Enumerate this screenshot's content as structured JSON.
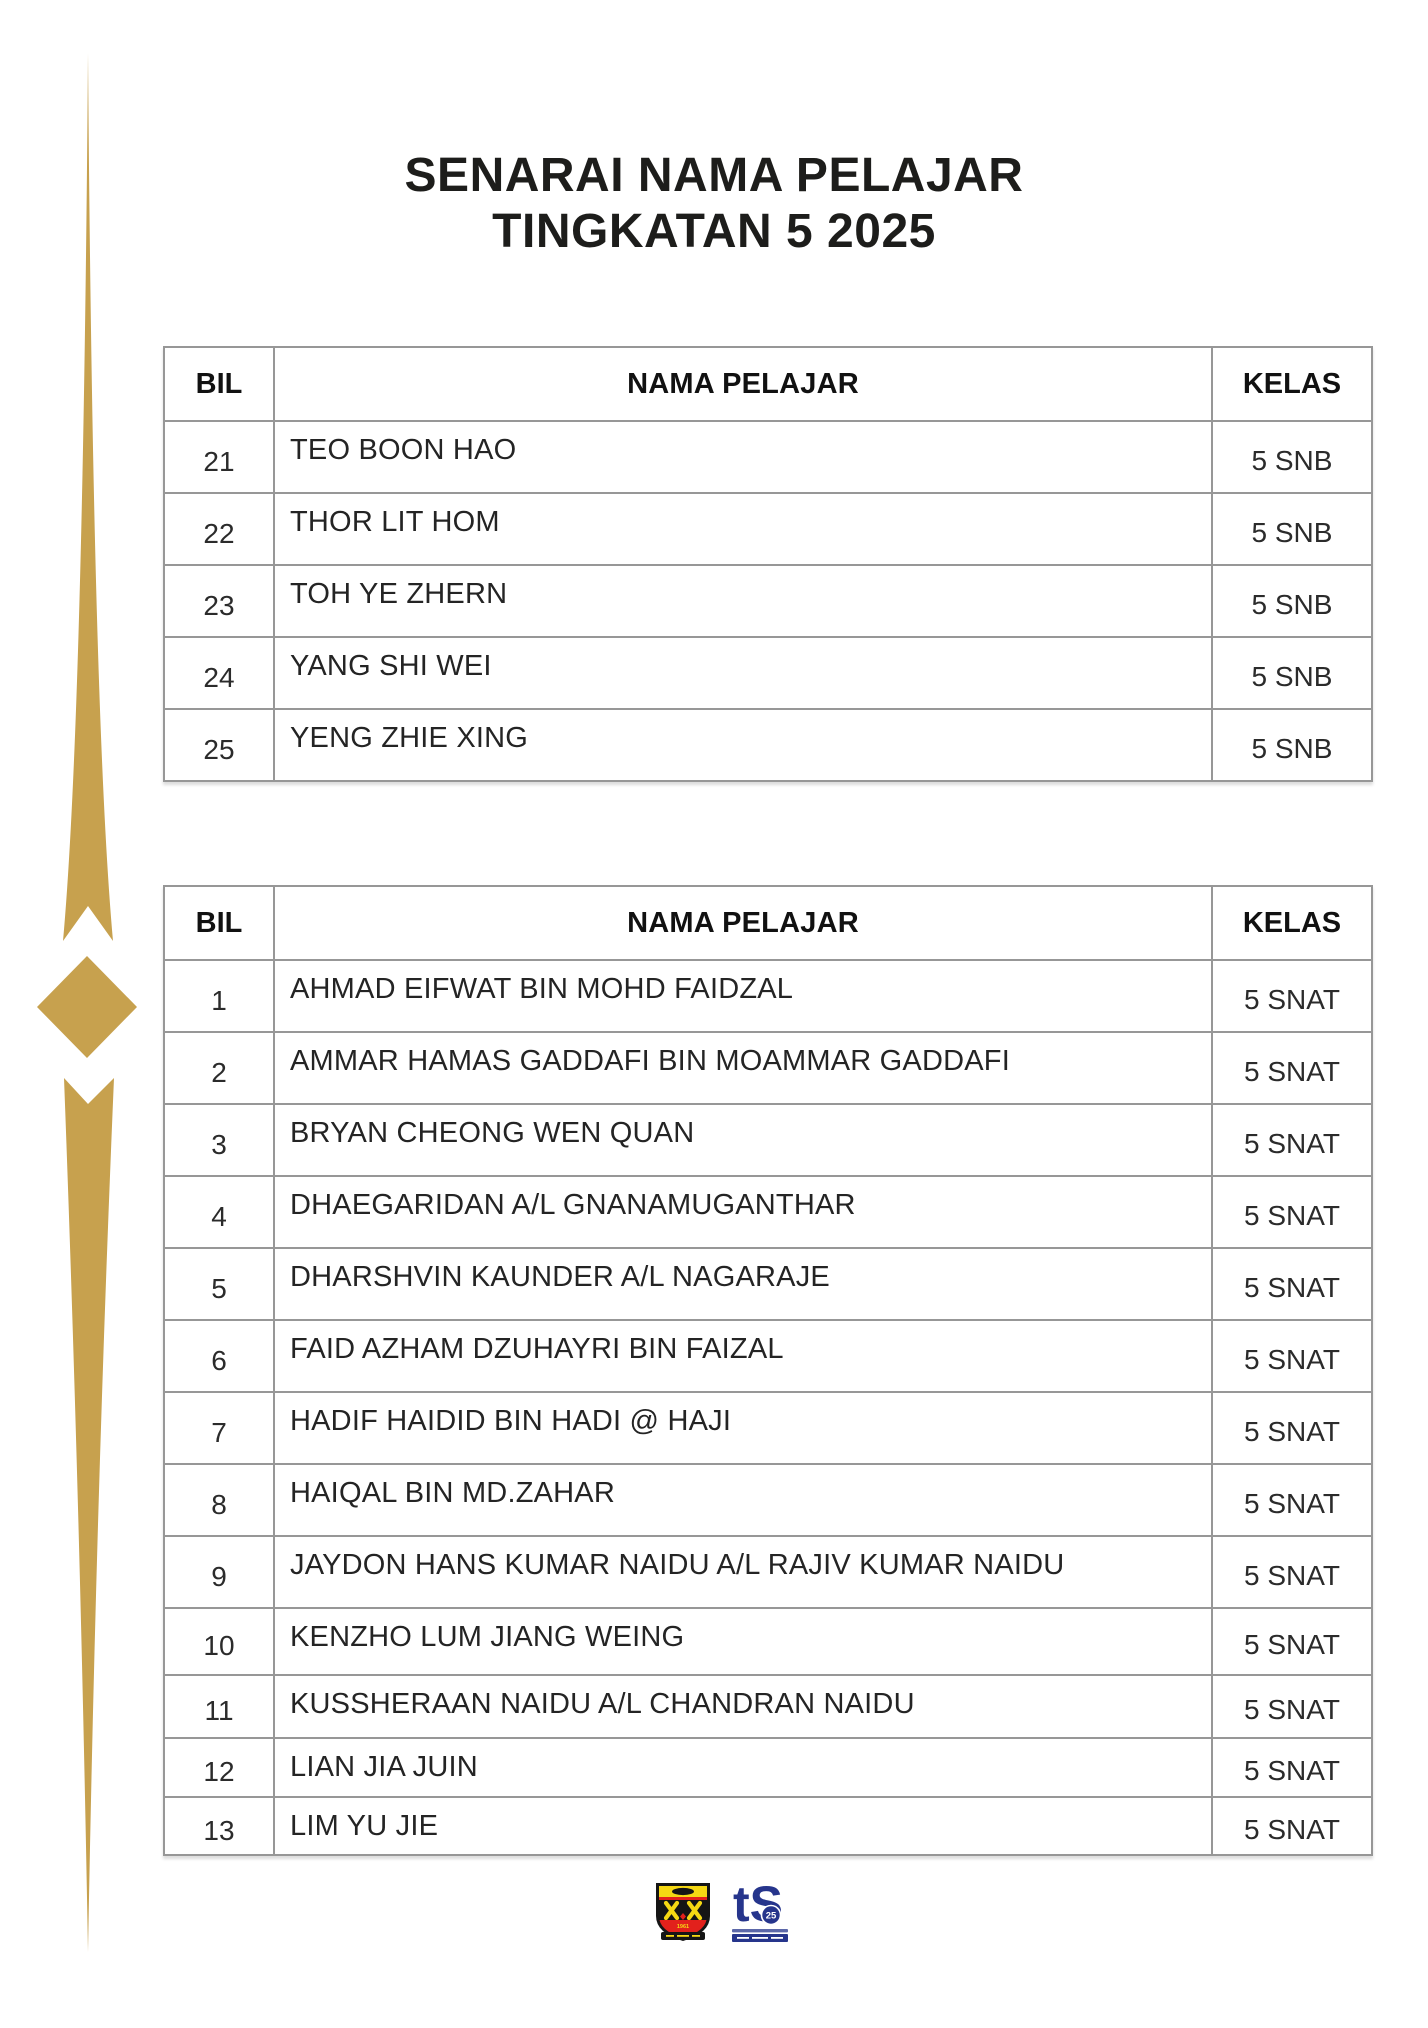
{
  "page": {
    "title_line1": "SENARAI NAMA PELAJAR",
    "title_line2": "TINGKATAN 5 2025"
  },
  "colors": {
    "gold": "#C7A14E",
    "crest_yellow": "#F5D813",
    "crest_red": "#E2211C",
    "crest_black": "#151515",
    "jubilee_navy": "#26358C"
  },
  "table1": {
    "headers": [
      "BIL",
      "NAMA PELAJAR",
      "KELAS"
    ],
    "rows": [
      {
        "bil": "21",
        "nama": "TEO BOON HAO",
        "kelas": "5 SNB"
      },
      {
        "bil": "22",
        "nama": "THOR LIT HOM",
        "kelas": "5 SNB"
      },
      {
        "bil": "23",
        "nama": "TOH YE ZHERN",
        "kelas": "5 SNB"
      },
      {
        "bil": "24",
        "nama": "YANG SHI WEI",
        "kelas": "5 SNB"
      },
      {
        "bil": "25",
        "nama": "YENG ZHIE XING",
        "kelas": "5 SNB"
      }
    ]
  },
  "table2": {
    "headers": [
      "BIL",
      "NAMA PELAJAR",
      "KELAS"
    ],
    "rows": [
      {
        "bil": "1",
        "nama": "AHMAD EIFWAT BIN MOHD FAIDZAL",
        "kelas": "5 SNAT"
      },
      {
        "bil": "2",
        "nama": "AMMAR HAMAS GADDAFI BIN MOAMMAR GADDAFI",
        "kelas": "5 SNAT"
      },
      {
        "bil": "3",
        "nama": "BRYAN CHEONG WEN QUAN",
        "kelas": "5 SNAT"
      },
      {
        "bil": "4",
        "nama": "DHAEGARIDAN A/L GNANAMUGANTHAR",
        "kelas": "5 SNAT"
      },
      {
        "bil": "5",
        "nama": "DHARSHVIN KAUNDER A/L NAGARAJE",
        "kelas": "5 SNAT"
      },
      {
        "bil": "6",
        "nama": "FAID AZHAM DZUHAYRI BIN FAIZAL",
        "kelas": "5 SNAT"
      },
      {
        "bil": "7",
        "nama": "HADIF HAIDID BIN HADI @ HAJI",
        "kelas": "5 SNAT"
      },
      {
        "bil": "8",
        "nama": "HAIQAL BIN MD.ZAHAR",
        "kelas": "5 SNAT"
      },
      {
        "bil": "9",
        "nama": "JAYDON HANS KUMAR NAIDU A/L RAJIV KUMAR NAIDU",
        "kelas": "5 SNAT"
      },
      {
        "bil": "10",
        "nama": "KENZHO LUM JIANG WEING",
        "kelas": "5 SNAT"
      },
      {
        "bil": "11",
        "nama": "KUSSHERAAN NAIDU A/L CHANDRAN NAIDU",
        "kelas": "5 SNAT"
      },
      {
        "bil": "12",
        "nama": "LIAN JIA JUIN",
        "kelas": "5 SNAT"
      },
      {
        "bil": "13",
        "nama": "LIM YU JIE",
        "kelas": "5 SNAT"
      }
    ]
  },
  "logos": {
    "crest_year": "1961",
    "jubilee_number": "25"
  }
}
